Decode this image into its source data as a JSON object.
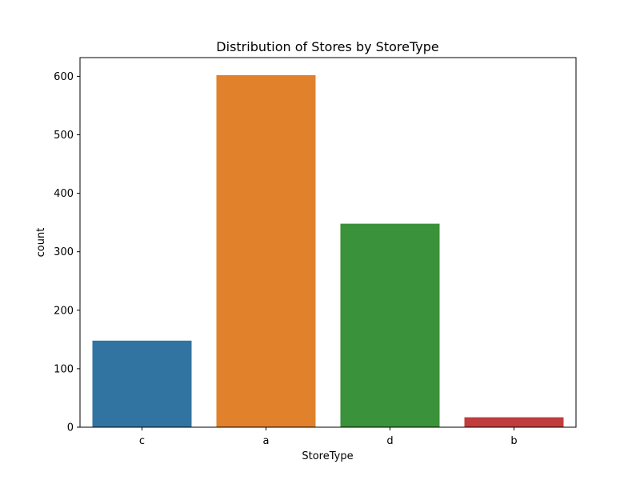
{
  "chart_data": {
    "type": "bar",
    "title": "Distribution of Stores by StoreType",
    "xlabel": "StoreType",
    "ylabel": "count",
    "categories": [
      "c",
      "a",
      "d",
      "b"
    ],
    "values": [
      148,
      602,
      348,
      17
    ],
    "colors": [
      "#3274a1",
      "#e1812c",
      "#3a923a",
      "#c03d3e"
    ],
    "ylim": [
      0,
      632
    ],
    "yticks": [
      0,
      100,
      200,
      300,
      400,
      500,
      600
    ],
    "grid": false,
    "legend": "none"
  }
}
